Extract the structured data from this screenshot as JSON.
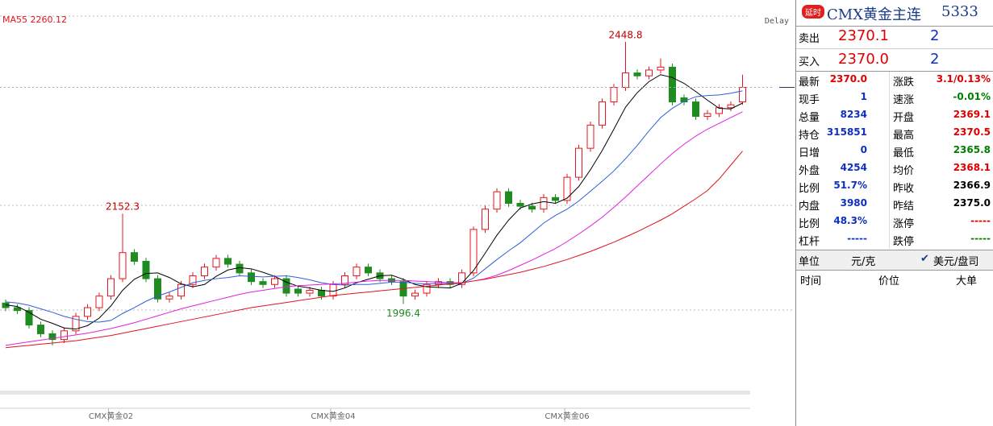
{
  "chart_data": {
    "type": "candlestick",
    "legend_name_series": 3,
    "delay": "Delay",
    "ylim": [
      1840,
      2500
    ],
    "up_color": "#e8141e",
    "down_color": "#1f8c1f",
    "categories": [
      null,
      null,
      null,
      null,
      null,
      null,
      null,
      null,
      null,
      "CMX黄金02",
      null,
      null,
      null,
      null,
      null,
      null,
      null,
      null,
      null,
      null,
      null,
      null,
      null,
      null,
      null,
      null,
      null,
      null,
      "CMX黄金04",
      null,
      null,
      null,
      null,
      null,
      null,
      null,
      null,
      null,
      null,
      null,
      null,
      null,
      null,
      null,
      null,
      null,
      null,
      null,
      "CMX黄金06",
      null,
      null,
      null,
      null,
      null,
      null,
      null,
      null,
      null,
      null,
      null,
      null,
      null,
      null,
      null
    ],
    "open": [
      1998,
      1990,
      1985,
      1960,
      1945,
      1935,
      1950,
      1975,
      1990,
      2010,
      2040,
      2085,
      2070,
      2040,
      2005,
      2010,
      2030,
      2045,
      2060,
      2075,
      2065,
      2050,
      2035,
      2030,
      2040,
      2022,
      2015,
      2020,
      2010,
      2030,
      2045,
      2060,
      2050,
      2040,
      2035,
      2010,
      2015,
      2030,
      2035,
      2030,
      2050,
      2125,
      2160,
      2190,
      2170,
      2165,
      2160,
      2180,
      2175,
      2215,
      2265,
      2305,
      2345,
      2370,
      2395,
      2390,
      2400,
      2405,
      2352,
      2345,
      2320,
      2325,
      2335,
      2345
    ],
    "high": [
      2004,
      1996,
      1991,
      1966,
      1951,
      1956,
      1981,
      1996,
      2016,
      2046,
      2152.3,
      2091,
      2076,
      2046,
      2016,
      2036,
      2051,
      2066,
      2081,
      2081,
      2071,
      2056,
      2041,
      2046,
      2046,
      2028,
      2026,
      2026,
      2036,
      2051,
      2066,
      2066,
      2056,
      2046,
      2041,
      2021,
      2036,
      2041,
      2041,
      2056,
      2130,
      2166,
      2196,
      2196,
      2176,
      2171,
      2186,
      2186,
      2221,
      2271,
      2311,
      2351,
      2376,
      2448.8,
      2401,
      2406,
      2420,
      2411,
      2358,
      2351,
      2331,
      2341,
      2346,
      2392
    ],
    "low": [
      1984,
      1979,
      1954,
      1939,
      1925,
      1929,
      1944,
      1969,
      1984,
      2004,
      2034,
      2064,
      2034,
      1999,
      1999,
      2004,
      2024,
      2039,
      2054,
      2059,
      2044,
      2029,
      2024,
      2024,
      2009,
      2009,
      2009,
      2004,
      2004,
      2024,
      2039,
      2044,
      2034,
      2029,
      1996.4,
      2004,
      2009,
      2024,
      2024,
      2024,
      2044,
      2119,
      2154,
      2164,
      2159,
      2154,
      2154,
      2169,
      2169,
      2209,
      2259,
      2299,
      2339,
      2364,
      2384,
      2384,
      2394,
      2339,
      2339,
      2314,
      2314,
      2319,
      2329,
      2340
    ],
    "close": [
      1990,
      1985,
      1960,
      1945,
      1935,
      1950,
      1975,
      1990,
      2010,
      2040,
      2085,
      2070,
      2040,
      2005,
      2010,
      2030,
      2045,
      2060,
      2075,
      2065,
      2050,
      2035,
      2030,
      2040,
      2015,
      2015,
      2020,
      2010,
      2030,
      2045,
      2060,
      2050,
      2040,
      2035,
      2010,
      2015,
      2030,
      2035,
      2030,
      2050,
      2125,
      2160,
      2190,
      2170,
      2165,
      2160,
      2180,
      2175,
      2215,
      2265,
      2305,
      2345,
      2370,
      2395,
      2390,
      2400,
      2405,
      2345,
      2345,
      2320,
      2325,
      2335,
      2340,
      2370
    ],
    "series": [
      {
        "color": "#000000",
        "values": [
          1995,
          1992,
          1982,
          1970,
          1963,
          1955,
          1953,
          1959,
          1972,
          1993,
          2020,
          2039,
          2049,
          2050,
          2042,
          2031,
          2026,
          2030,
          2044,
          2055,
          2059,
          2057,
          2051,
          2044,
          2034,
          2027,
          2024,
          2020,
          2018,
          2024,
          2033,
          2039,
          2045,
          2046,
          2039,
          2030,
          2026,
          2025,
          2024,
          2032,
          2054,
          2084,
          2115,
          2141,
          2162,
          2169,
          2173,
          2170,
          2179,
          2199,
          2228,
          2261,
          2298,
          2336,
          2361,
          2380,
          2392,
          2387,
          2377,
          2363,
          2348,
          2334,
          2333,
          2343
        ]
      },
      {
        "color": "#2f5fd8",
        "values": [
          2000,
          1998,
          1994,
          1988,
          1982,
          1975,
          1970,
          1966,
          1965,
          1968,
          1980,
          1990,
          2001,
          2010,
          2017,
          2025,
          2033,
          2037,
          2040,
          2042,
          2045,
          2044,
          2043,
          2044,
          2045,
          2042,
          2038,
          2033,
          2030,
          2029,
          2030,
          2030,
          2032,
          2034,
          2034,
          2032,
          2031,
          2032,
          2031,
          2032,
          2041,
          2057,
          2073,
          2088,
          2102,
          2119,
          2136,
          2149,
          2160,
          2174,
          2191,
          2208,
          2226,
          2247,
          2270,
          2295,
          2318,
          2334,
          2346,
          2354,
          2356,
          2357,
          2360,
          2364
        ]
      },
      {
        "color": "#e020e0",
        "values": [
          1925,
          1928,
          1931,
          1934,
          1937,
          1940,
          1943,
          1946,
          1950,
          1954,
          1959,
          1964,
          1970,
          1976,
          1982,
          1988,
          1993,
          1998,
          2003,
          2008,
          2013,
          2017,
          2020,
          2023,
          2026,
          2028,
          2029,
          2030,
          2031,
          2032,
          2034,
          2036,
          2037,
          2037,
          2037,
          2036,
          2035,
          2034,
          2033,
          2033,
          2036,
          2040,
          2046,
          2054,
          2063,
          2072,
          2082,
          2092,
          2104,
          2117,
          2131,
          2146,
          2163,
          2181,
          2200,
          2219,
          2238,
          2256,
          2272,
          2286,
          2298,
          2308,
          2318,
          2328
        ]
      },
      {
        "name": "MA55",
        "color": "#e0141e",
        "values": [
          1921,
          1923,
          1925,
          1927,
          1929,
          1931,
          1933,
          1936,
          1939,
          1942,
          1946,
          1950,
          1954,
          1958,
          1962,
          1966,
          1970,
          1974,
          1978,
          1982,
          1986,
          1990,
          1993,
          1996,
          1999,
          2002,
          2005,
          2008,
          2011,
          2013,
          2015,
          2017,
          2019,
          2021,
          2023,
          2025,
          2027,
          2029,
          2031,
          2033,
          2036,
          2039,
          2043,
          2047,
          2051,
          2056,
          2061,
          2067,
          2073,
          2080,
          2087,
          2095,
          2103,
          2112,
          2121,
          2131,
          2141,
          2152,
          2165,
          2178,
          2192,
          2212,
          2236,
          2260.12
        ]
      }
    ]
  },
  "panel": {
    "badge": "延时",
    "title": "CMX黄金主连",
    "code": "5333",
    "sell": {
      "label": "卖出",
      "price": "2370.1",
      "qty": "2"
    },
    "buy": {
      "label": "买入",
      "price": "2370.0",
      "qty": "2"
    },
    "stats": [
      [
        "最新",
        "2370.0",
        "涨跌",
        "3.1/0.13%"
      ],
      [
        "现手",
        "1",
        "速涨",
        "-0.01%"
      ],
      [
        "总量",
        "8234",
        "开盘",
        "2369.1"
      ],
      [
        "持仓",
        "315851",
        "最高",
        "2370.5"
      ],
      [
        "日增",
        "0",
        "最低",
        "2365.8"
      ],
      [
        "外盘",
        "4254",
        "均价",
        "2368.1"
      ],
      [
        "比例",
        "51.7%",
        "昨收",
        "2366.9"
      ],
      [
        "内盘",
        "3980",
        "昨结",
        "2375.0"
      ],
      [
        "比例",
        "48.3%",
        "涨停",
        "-----"
      ],
      [
        "杠杆",
        "-----",
        "跌停",
        "-----"
      ]
    ],
    "unit": {
      "label": "单位",
      "cny": "元/克",
      "usd": "美元/盘司"
    },
    "columns": [
      "时间",
      "价位",
      "大单"
    ]
  }
}
